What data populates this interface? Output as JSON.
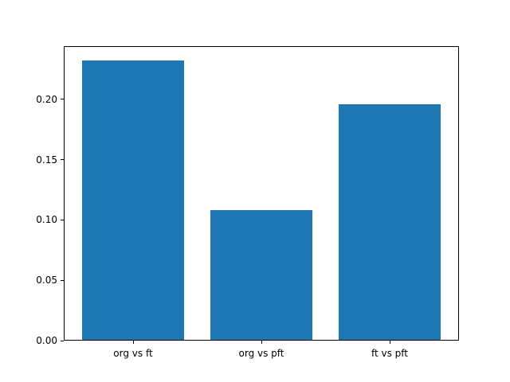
{
  "figure": {
    "background_color": "#ffffff",
    "spine_color": "#000000",
    "text_color": "#000000"
  },
  "chart_data": {
    "type": "bar",
    "title": "",
    "xlabel": "",
    "ylabel": "",
    "categories": [
      "org vs ft",
      "org vs pft",
      "ft vs pft"
    ],
    "values": [
      0.232,
      0.108,
      0.196
    ],
    "bar_color": "#1f77b4",
    "ytick_labels": [
      "0.00",
      "0.05",
      "0.10",
      "0.15",
      "0.20"
    ],
    "ytick_values": [
      0.0,
      0.05,
      0.1,
      0.15,
      0.2
    ],
    "ylim": [
      0,
      0.244
    ],
    "xlim": [
      -0.54,
      2.54
    ],
    "bar_width": 0.8,
    "grid": false,
    "legend": null
  }
}
